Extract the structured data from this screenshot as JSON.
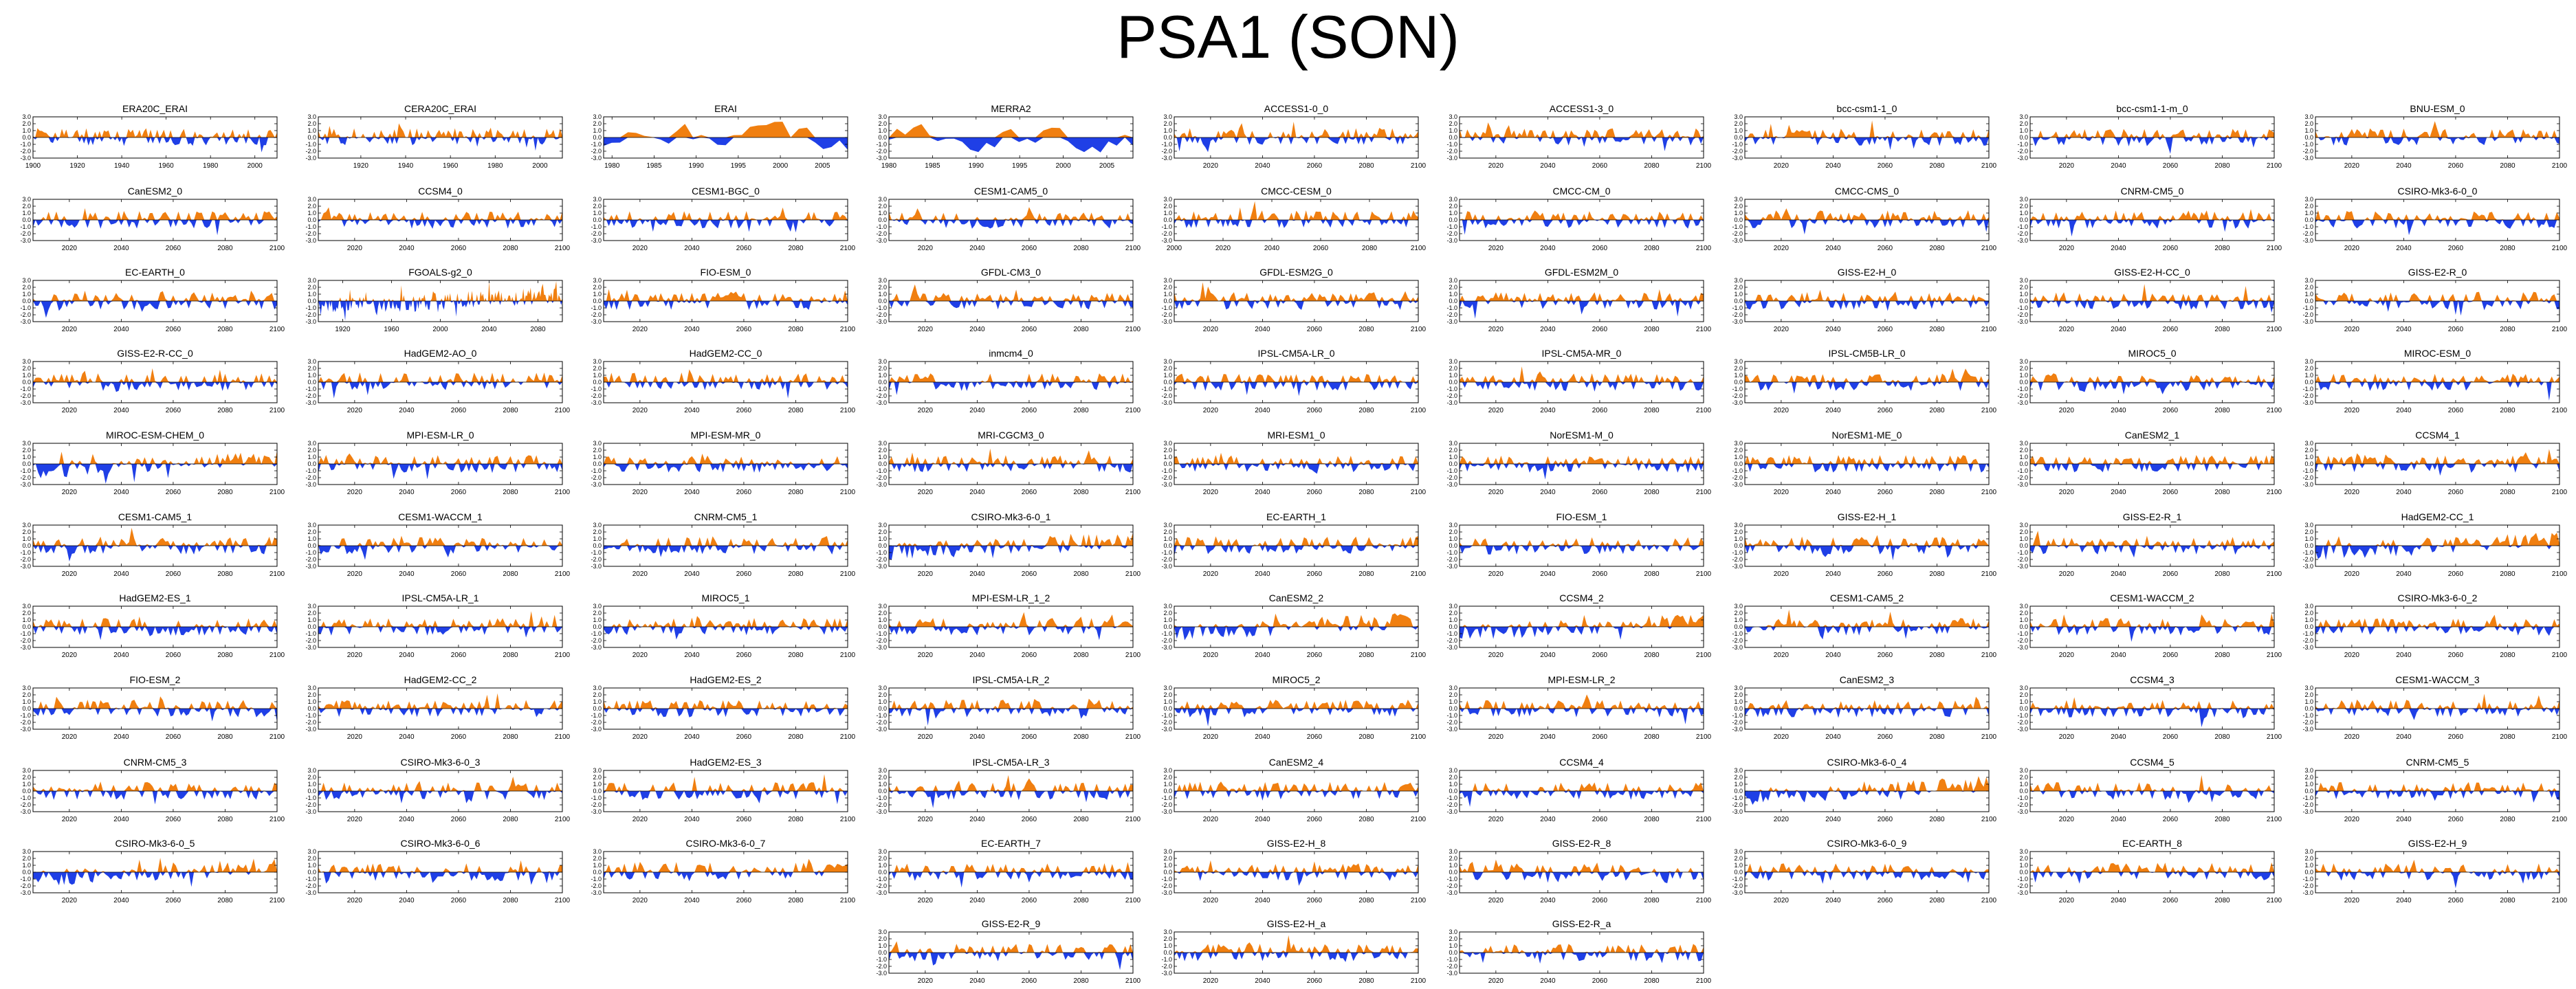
{
  "title": "PSA1 (SON)",
  "colors": {
    "positive": "#F07F10",
    "negative": "#1F3FE6",
    "axis": "#000000"
  },
  "axis_defaults": {
    "yticks": [
      "3.0",
      "2.0",
      "1.0",
      "0.0",
      "-1.0",
      "-2.0",
      "-3.0"
    ],
    "ylim": [
      -3,
      3
    ],
    "xticks_future": [
      "2020",
      "2040",
      "2060",
      "2080",
      "2100"
    ],
    "xlim_future": [
      2006,
      2100
    ]
  },
  "chart_data": [
    {
      "type": "area",
      "title": "ERA20C_ERAI",
      "xlim": [
        1900,
        2010
      ],
      "xticks": [
        "1900",
        "1920",
        "1940",
        "1960",
        "1980",
        "2000"
      ],
      "bias": 0.05,
      "seed": 11
    },
    {
      "type": "area",
      "title": "CERA20C_ERAI",
      "xlim": [
        1901,
        2010
      ],
      "xticks": [
        "1920",
        "1940",
        "1960",
        "1980",
        "2000"
      ],
      "bias": 0.15,
      "seed": 12
    },
    {
      "type": "area",
      "title": "ERAI",
      "xlim": [
        1979,
        2008
      ],
      "xticks": [
        "1980",
        "1985",
        "1990",
        "1995",
        "2000",
        "2005"
      ],
      "bias": 0.0,
      "seed": 13,
      "smooth": true
    },
    {
      "type": "area",
      "title": "MERRA2",
      "xlim": [
        1980,
        2008
      ],
      "xticks": [
        "1980",
        "1985",
        "1990",
        "1995",
        "2000",
        "2005"
      ],
      "bias": 0.0,
      "seed": 14,
      "smooth": true
    },
    {
      "type": "area",
      "title": "ACCESS1-0_0",
      "bias": 0.1,
      "seed": 15
    },
    {
      "type": "area",
      "title": "ACCESS1-3_0",
      "bias": 0.1,
      "seed": 16
    },
    {
      "type": "area",
      "title": "bcc-csm1-1_0",
      "bias": 0.0,
      "seed": 17
    },
    {
      "type": "area",
      "title": "bcc-csm1-1-m_0",
      "bias": 0.0,
      "seed": 18
    },
    {
      "type": "area",
      "title": "BNU-ESM_0",
      "bias": 0.1,
      "seed": 19
    },
    {
      "type": "area",
      "title": "CanESM2_0",
      "bias": 0.0,
      "seed": 20
    },
    {
      "type": "area",
      "title": "CCSM4_0",
      "bias": 0.0,
      "seed": 21
    },
    {
      "type": "area",
      "title": "CESM1-BGC_0",
      "bias": 0.0,
      "seed": 22
    },
    {
      "type": "area",
      "title": "CESM1-CAM5_0",
      "bias": 0.0,
      "seed": 23
    },
    {
      "type": "area",
      "title": "CMCC-CESM_0",
      "xlim": [
        2000,
        2100
      ],
      "xticks": [
        "2000",
        "2020",
        "2040",
        "2060",
        "2080",
        "2100"
      ],
      "bias": 0.1,
      "seed": 24
    },
    {
      "type": "area",
      "title": "CMCC-CM_0",
      "bias": 0.0,
      "seed": 25
    },
    {
      "type": "area",
      "title": "CMCC-CMS_0",
      "bias": 0.1,
      "seed": 26
    },
    {
      "type": "area",
      "title": "CNRM-CM5_0",
      "bias": 0.0,
      "seed": 27
    },
    {
      "type": "area",
      "title": "CSIRO-Mk3-6-0_0",
      "bias": 0.0,
      "seed": 28
    },
    {
      "type": "area",
      "title": "EC-EARTH_0",
      "bias": 0.0,
      "seed": 29
    },
    {
      "type": "area",
      "title": "FGOALS-g2_0",
      "xlim": [
        1900,
        2100
      ],
      "xticks": [
        "1920",
        "1960",
        "2000",
        "2040",
        "2080"
      ],
      "bias": 0.0,
      "seed": 30,
      "trend": true
    },
    {
      "type": "area",
      "title": "FIO-ESM_0",
      "bias": 0.0,
      "seed": 31
    },
    {
      "type": "area",
      "title": "GFDL-CM3_0",
      "bias": 0.0,
      "seed": 32
    },
    {
      "type": "area",
      "title": "GFDL-ESM2G_0",
      "bias": 0.0,
      "seed": 33
    },
    {
      "type": "area",
      "title": "GFDL-ESM2M_0",
      "bias": 0.0,
      "seed": 34
    },
    {
      "type": "area",
      "title": "GISS-E2-H_0",
      "bias": 0.0,
      "seed": 35
    },
    {
      "type": "area",
      "title": "GISS-E2-H-CC_0",
      "bias": 0.0,
      "seed": 36
    },
    {
      "type": "area",
      "title": "GISS-E2-R_0",
      "bias": 0.0,
      "seed": 37
    },
    {
      "type": "area",
      "title": "GISS-E2-R-CC_0",
      "bias": 0.0,
      "seed": 38
    },
    {
      "type": "area",
      "title": "HadGEM2-AO_0",
      "bias": 0.1,
      "seed": 39
    },
    {
      "type": "area",
      "title": "HadGEM2-CC_0",
      "bias": 0.1,
      "seed": 40
    },
    {
      "type": "area",
      "title": "inmcm4_0",
      "bias": 0.0,
      "seed": 41
    },
    {
      "type": "area",
      "title": "IPSL-CM5A-LR_0",
      "bias": 0.0,
      "seed": 42
    },
    {
      "type": "area",
      "title": "IPSL-CM5A-MR_0",
      "bias": 0.0,
      "seed": 43
    },
    {
      "type": "area",
      "title": "IPSL-CM5B-LR_0",
      "bias": 0.0,
      "seed": 44
    },
    {
      "type": "area",
      "title": "MIROC5_0",
      "bias": 0.0,
      "seed": 45
    },
    {
      "type": "area",
      "title": "MIROC-ESM_0",
      "bias": 0.0,
      "seed": 46
    },
    {
      "type": "area",
      "title": "MIROC-ESM-CHEM_0",
      "bias": 0.0,
      "seed": 47,
      "trend": true
    },
    {
      "type": "area",
      "title": "MPI-ESM-LR_0",
      "bias": 0.0,
      "seed": 48
    },
    {
      "type": "area",
      "title": "MPI-ESM-MR_0",
      "bias": 0.0,
      "seed": 49
    },
    {
      "type": "area",
      "title": "MRI-CGCM3_0",
      "bias": 0.0,
      "seed": 50
    },
    {
      "type": "area",
      "title": "MRI-ESM1_0",
      "bias": 0.0,
      "seed": 51
    },
    {
      "type": "area",
      "title": "NorESM1-M_0",
      "bias": 0.0,
      "seed": 52
    },
    {
      "type": "area",
      "title": "NorESM1-ME_0",
      "bias": 0.0,
      "seed": 53
    },
    {
      "type": "area",
      "title": "CanESM2_1",
      "bias": 0.0,
      "seed": 54
    },
    {
      "type": "area",
      "title": "CCSM4_1",
      "bias": 0.0,
      "seed": 55
    },
    {
      "type": "area",
      "title": "CESM1-CAM5_1",
      "bias": 0.0,
      "seed": 56
    },
    {
      "type": "area",
      "title": "CESM1-WACCM_1",
      "bias": 0.0,
      "seed": 57
    },
    {
      "type": "area",
      "title": "CNRM-CM5_1",
      "bias": 0.0,
      "seed": 58
    },
    {
      "type": "area",
      "title": "CSIRO-Mk3-6-0_1",
      "bias": 0.0,
      "seed": 59,
      "trend": true
    },
    {
      "type": "area",
      "title": "EC-EARTH_1",
      "bias": 0.1,
      "seed": 60
    },
    {
      "type": "area",
      "title": "FIO-ESM_1",
      "bias": 0.0,
      "seed": 61
    },
    {
      "type": "area",
      "title": "GISS-E2-H_1",
      "bias": 0.0,
      "seed": 62
    },
    {
      "type": "area",
      "title": "GISS-E2-R_1",
      "bias": 0.0,
      "seed": 63
    },
    {
      "type": "area",
      "title": "HadGEM2-CC_1",
      "bias": 0.0,
      "seed": 64,
      "trend": true
    },
    {
      "type": "area",
      "title": "HadGEM2-ES_1",
      "bias": 0.0,
      "seed": 65
    },
    {
      "type": "area",
      "title": "IPSL-CM5A-LR_1",
      "bias": 0.0,
      "seed": 66
    },
    {
      "type": "area",
      "title": "MIROC5_1",
      "bias": 0.0,
      "seed": 67
    },
    {
      "type": "area",
      "title": "MPI-ESM-LR_1_2",
      "bias": 0.0,
      "seed": 68
    },
    {
      "type": "area",
      "title": "CanESM2_2",
      "bias": 0.0,
      "seed": 69,
      "trend": true
    },
    {
      "type": "area",
      "title": "CCSM4_2",
      "bias": 0.0,
      "seed": 70,
      "trend": true
    },
    {
      "type": "area",
      "title": "CESM1-CAM5_2",
      "bias": 0.0,
      "seed": 71
    },
    {
      "type": "area",
      "title": "CESM1-WACCM_2",
      "bias": 0.0,
      "seed": 72
    },
    {
      "type": "area",
      "title": "CSIRO-Mk3-6-0_2",
      "bias": 0.0,
      "seed": 73
    },
    {
      "type": "area",
      "title": "FIO-ESM_2",
      "bias": 0.0,
      "seed": 74
    },
    {
      "type": "area",
      "title": "HadGEM2-CC_2",
      "bias": 0.0,
      "seed": 75
    },
    {
      "type": "area",
      "title": "HadGEM2-ES_2",
      "bias": 0.0,
      "seed": 76
    },
    {
      "type": "area",
      "title": "IPSL-CM5A-LR_2",
      "bias": 0.0,
      "seed": 77
    },
    {
      "type": "area",
      "title": "MIROC5_2",
      "bias": 0.0,
      "seed": 78
    },
    {
      "type": "area",
      "title": "MPI-ESM-LR_2",
      "bias": 0.0,
      "seed": 79
    },
    {
      "type": "area",
      "title": "CanESM2_3",
      "bias": 0.0,
      "seed": 80
    },
    {
      "type": "area",
      "title": "CCSM4_3",
      "bias": 0.0,
      "seed": 81
    },
    {
      "type": "area",
      "title": "CESM1-WACCM_3",
      "bias": 0.0,
      "seed": 82
    },
    {
      "type": "area",
      "title": "CNRM-CM5_3",
      "bias": 0.0,
      "seed": 83
    },
    {
      "type": "area",
      "title": "CSIRO-Mk3-6-0_3",
      "bias": 0.0,
      "seed": 84
    },
    {
      "type": "area",
      "title": "HadGEM2-ES_3",
      "bias": 0.0,
      "seed": 85
    },
    {
      "type": "area",
      "title": "IPSL-CM5A-LR_3",
      "bias": 0.0,
      "seed": 86
    },
    {
      "type": "area",
      "title": "CanESM2_4",
      "bias": 0.1,
      "seed": 87
    },
    {
      "type": "area",
      "title": "CCSM4_4",
      "bias": 0.0,
      "seed": 88
    },
    {
      "type": "area",
      "title": "CSIRO-Mk3-6-0_4",
      "bias": 0.0,
      "seed": 89,
      "trend": true
    },
    {
      "type": "area",
      "title": "CCSM4_5",
      "bias": 0.0,
      "seed": 90
    },
    {
      "type": "area",
      "title": "CNRM-CM5_5",
      "bias": 0.0,
      "seed": 91
    },
    {
      "type": "area",
      "title": "CSIRO-Mk3-6-0_5",
      "bias": 0.0,
      "seed": 92,
      "trend": true
    },
    {
      "type": "area",
      "title": "CSIRO-Mk3-6-0_6",
      "bias": 0.0,
      "seed": 93
    },
    {
      "type": "area",
      "title": "CSIRO-Mk3-6-0_7",
      "bias": 0.2,
      "seed": 94
    },
    {
      "type": "area",
      "title": "EC-EARTH_7",
      "bias": 0.0,
      "seed": 95
    },
    {
      "type": "area",
      "title": "GISS-E2-H_8",
      "bias": 0.0,
      "seed": 96
    },
    {
      "type": "area",
      "title": "GISS-E2-R_8",
      "bias": 0.0,
      "seed": 97
    },
    {
      "type": "area",
      "title": "CSIRO-Mk3-6-0_9",
      "bias": 0.0,
      "seed": 98
    },
    {
      "type": "area",
      "title": "EC-EARTH_8",
      "bias": 0.1,
      "seed": 99
    },
    {
      "type": "area",
      "title": "GISS-E2-H_9",
      "bias": 0.0,
      "seed": 100
    },
    {
      "type": "area",
      "title": "GISS-E2-R_9",
      "bias": 0.0,
      "seed": 101
    },
    {
      "type": "area",
      "title": "GISS-E2-H_a",
      "bias": 0.0,
      "seed": 102
    },
    {
      "type": "area",
      "title": "GISS-E2-R_a",
      "bias": 0.0,
      "seed": 103
    }
  ]
}
